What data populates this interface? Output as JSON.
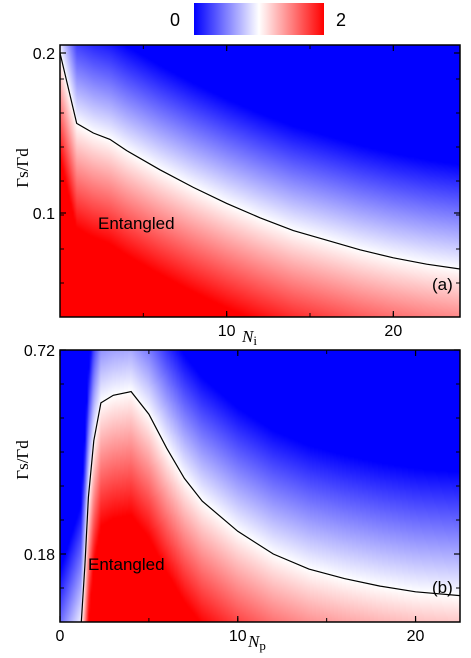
{
  "chart_data": [
    {
      "type": "heatmap",
      "panel_label": "(a)",
      "annotation": "Entangled",
      "xlabel": "N",
      "xlabel_sub": "i",
      "ylabel": "Γs/Γd",
      "xlim": [
        0,
        24
      ],
      "ylim": [
        0.035,
        0.205
      ],
      "x_ticks": [
        10,
        20
      ],
      "x_tick_labels": [
        "10",
        "20"
      ],
      "y_ticks": [
        0.1,
        0.2
      ],
      "y_tick_labels": [
        "0.1",
        "0.2"
      ],
      "boundary": {
        "x": [
          0,
          1,
          2,
          3,
          4,
          6,
          8,
          10,
          12,
          14,
          16,
          18,
          20,
          22,
          24
        ],
        "y": [
          0.2,
          0.156,
          0.15,
          0.146,
          0.139,
          0.127,
          0.116,
          0.106,
          0.097,
          0.089,
          0.083,
          0.077,
          0.072,
          0.068,
          0.065
        ]
      }
    },
    {
      "type": "heatmap",
      "panel_label": "(b)",
      "annotation": "Entangled",
      "xlabel": "N",
      "xlabel_sub": "p",
      "ylabel": "Γs/Γd",
      "xlim": [
        0,
        22.5
      ],
      "ylim": [
        0,
        0.72
      ],
      "x_ticks": [
        0,
        10,
        20
      ],
      "x_tick_labels": [
        "0",
        "10",
        "20"
      ],
      "y_ticks": [
        0.18,
        0.72
      ],
      "y_tick_labels": [
        "0.18",
        "0.72"
      ],
      "boundary": {
        "x": [
          1.2,
          1.4,
          1.6,
          1.9,
          2.3,
          3.0,
          4.0,
          5.0,
          6.0,
          7.0,
          8.0,
          10.0,
          12.0,
          14.0,
          16.0,
          18.0,
          20.0,
          22.5
        ],
        "y": [
          0.0,
          0.15,
          0.33,
          0.48,
          0.58,
          0.6,
          0.61,
          0.55,
          0.46,
          0.38,
          0.32,
          0.24,
          0.18,
          0.14,
          0.115,
          0.095,
          0.08,
          0.07
        ]
      }
    }
  ],
  "colorbar": {
    "min_label": "0",
    "max_label": "2",
    "colors": [
      "#0000ff",
      "#ffffff",
      "#ff0000"
    ]
  }
}
